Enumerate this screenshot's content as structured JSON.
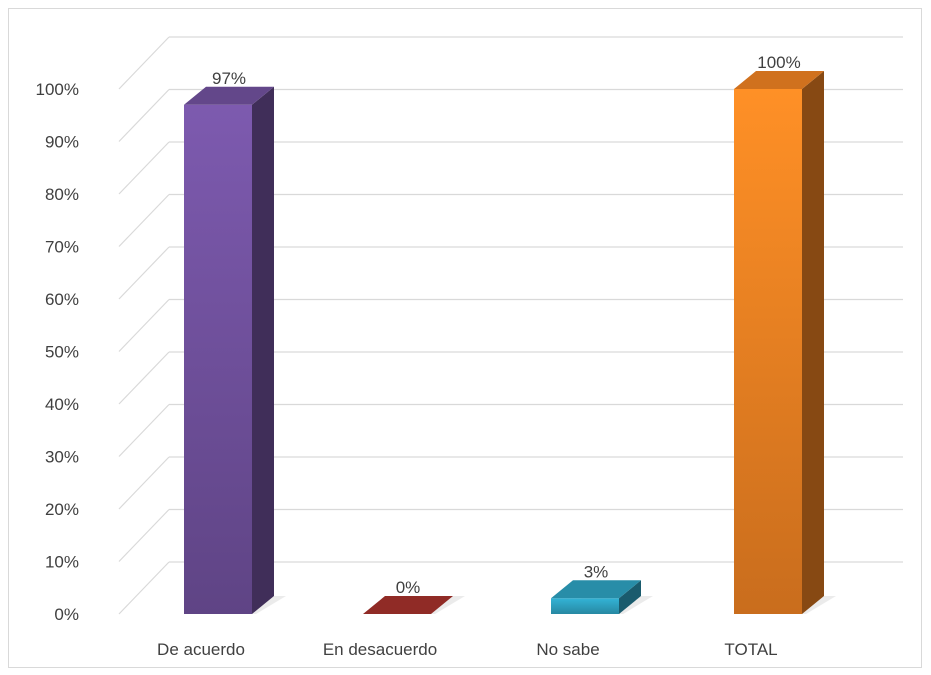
{
  "chart_data": {
    "type": "bar",
    "title": "",
    "xlabel": "",
    "ylabel": "",
    "categories": [
      "De acuerdo",
      "En desacuerdo",
      "No sabe",
      "TOTAL"
    ],
    "values": [
      97,
      0,
      3,
      100
    ],
    "value_labels": [
      "97%",
      "0%",
      "3%",
      "100%"
    ],
    "y_ticks": [
      "0%",
      "10%",
      "20%",
      "30%",
      "40%",
      "50%",
      "60%",
      "70%",
      "80%",
      "90%",
      "100%"
    ],
    "ylim": [
      0,
      100
    ],
    "grid": true,
    "style": "3d-column",
    "colors": [
      "#7453a2",
      "#a9322d",
      "#2fa6c6",
      "#f58523"
    ]
  }
}
